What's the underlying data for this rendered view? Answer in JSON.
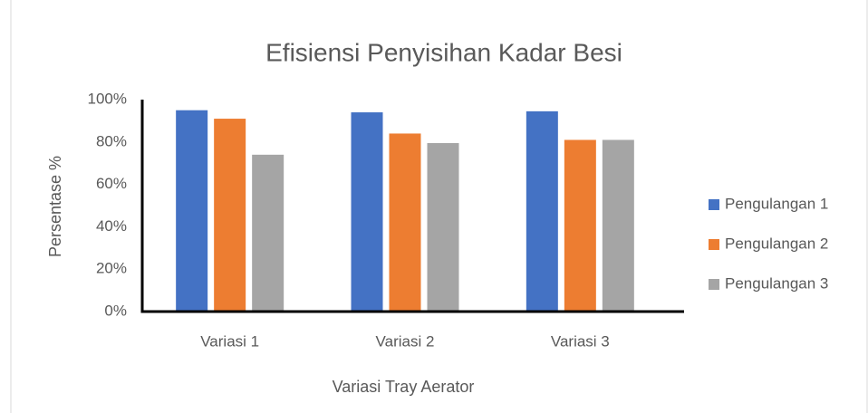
{
  "chart_data": {
    "type": "bar",
    "title": "Efisiensi Penyisihan Kadar Besi",
    "x_label": "Variasi Tray Aerator",
    "y_label": "Persentase %",
    "categories": [
      "Variasi 1",
      "Variasi 2",
      "Variasi 3"
    ],
    "series": [
      {
        "name": "Pengulangan 1",
        "color": "#4472c4",
        "values": [
          95,
          94,
          94.5
        ]
      },
      {
        "name": "Pengulangan 2",
        "color": "#ed7d31",
        "values": [
          91,
          84,
          81
        ]
      },
      {
        "name": "Pengulangan 3",
        "color": "#a5a5a5",
        "values": [
          74,
          79.5,
          81
        ]
      }
    ],
    "ylim": [
      0,
      100
    ],
    "yticks": [
      {
        "value": 0,
        "label": "0%"
      },
      {
        "value": 20,
        "label": "20%"
      },
      {
        "value": 40,
        "label": "40%"
      },
      {
        "value": 60,
        "label": "60%"
      },
      {
        "value": 80,
        "label": "80%"
      },
      {
        "value": 100,
        "label": "100%"
      }
    ],
    "grid": false,
    "legend": "right"
  }
}
